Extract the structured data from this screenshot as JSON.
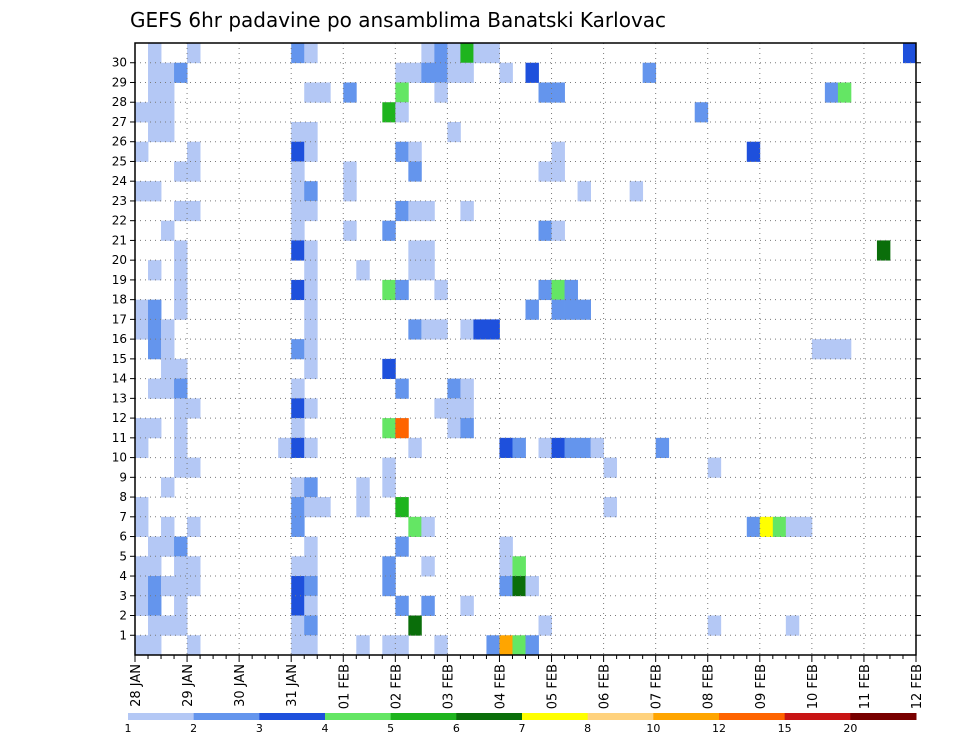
{
  "chart_data": {
    "type": "heatmap",
    "title": "GEFS 6hr padavine po ansamblima Banatski Karlovac",
    "x_tick_labels": [
      "28 JAN",
      "29 JAN",
      "30 JAN",
      "31 JAN",
      "01 FEB",
      "02 FEB",
      "03 FEB",
      "04 FEB",
      "05 FEB",
      "06 FEB",
      "07 FEB",
      "08 FEB",
      "09 FEB",
      "10 FEB",
      "11 FEB",
      "12 FEB"
    ],
    "y_tick_labels": [
      "1",
      "2",
      "3",
      "4",
      "5",
      "6",
      "7",
      "8",
      "9",
      "10",
      "11",
      "12",
      "13",
      "14",
      "15",
      "16",
      "17",
      "18",
      "19",
      "20",
      "21",
      "22",
      "23",
      "24",
      "25",
      "26",
      "27",
      "28",
      "29",
      "30"
    ],
    "time_step_hours": 6,
    "grid": "dotted",
    "colorbar": {
      "placement": "bottom",
      "labels": [
        "1",
        "2",
        "3",
        "4",
        "5",
        "6",
        "7",
        "8",
        "10",
        "12",
        "15",
        "20"
      ],
      "colors": [
        "#b4c8f5",
        "#6495ed",
        "#1e50dc",
        "#64e664",
        "#1eb41e",
        "#0a6e0a",
        "#ffff00",
        "#ffd27d",
        "#ffa500",
        "#ff6400",
        "#c81414",
        "#780000"
      ]
    },
    "members": [
      {
        "member": 30,
        "cells": [
          [
            1,
            1
          ],
          [
            4,
            1
          ],
          [
            12,
            2
          ],
          [
            13,
            1
          ],
          [
            22,
            1
          ],
          [
            23,
            2
          ],
          [
            24,
            1
          ],
          [
            25,
            5
          ],
          [
            26,
            1
          ],
          [
            27,
            1
          ],
          [
            59,
            3
          ]
        ]
      },
      {
        "member": 29,
        "cells": [
          [
            1,
            1
          ],
          [
            2,
            1
          ],
          [
            3,
            2
          ],
          [
            20,
            1
          ],
          [
            21,
            1
          ],
          [
            22,
            2
          ],
          [
            23,
            2
          ],
          [
            24,
            1
          ],
          [
            25,
            1
          ],
          [
            28,
            1
          ],
          [
            30,
            3
          ],
          [
            39,
            2
          ]
        ]
      },
      {
        "member": 28,
        "cells": [
          [
            1,
            1
          ],
          [
            2,
            1
          ],
          [
            13,
            1
          ],
          [
            14,
            1
          ],
          [
            16,
            2
          ],
          [
            20,
            4
          ],
          [
            23,
            1
          ],
          [
            31,
            2
          ],
          [
            32,
            2
          ],
          [
            53,
            2
          ],
          [
            54,
            4
          ]
        ]
      },
      {
        "member": 27,
        "cells": [
          [
            0,
            1
          ],
          [
            1,
            1
          ],
          [
            2,
            1
          ],
          [
            19,
            5
          ],
          [
            20,
            1
          ],
          [
            43,
            2
          ]
        ]
      },
      {
        "member": 26,
        "cells": [
          [
            1,
            1
          ],
          [
            2,
            1
          ],
          [
            12,
            1
          ],
          [
            13,
            1
          ],
          [
            24,
            1
          ]
        ]
      },
      {
        "member": 25,
        "cells": [
          [
            0,
            1
          ],
          [
            4,
            1
          ],
          [
            12,
            3
          ],
          [
            13,
            1
          ],
          [
            20,
            2
          ],
          [
            21,
            1
          ],
          [
            32,
            1
          ],
          [
            47,
            3
          ]
        ]
      },
      {
        "member": 24,
        "cells": [
          [
            3,
            1
          ],
          [
            4,
            1
          ],
          [
            12,
            1
          ],
          [
            16,
            1
          ],
          [
            21,
            2
          ],
          [
            31,
            1
          ],
          [
            32,
            1
          ]
        ]
      },
      {
        "member": 23,
        "cells": [
          [
            0,
            1
          ],
          [
            1,
            1
          ],
          [
            12,
            1
          ],
          [
            13,
            2
          ],
          [
            16,
            1
          ],
          [
            34,
            1
          ],
          [
            38,
            1
          ]
        ]
      },
      {
        "member": 22,
        "cells": [
          [
            3,
            1
          ],
          [
            4,
            1
          ],
          [
            12,
            1
          ],
          [
            13,
            1
          ],
          [
            20,
            2
          ],
          [
            21,
            1
          ],
          [
            22,
            1
          ],
          [
            25,
            1
          ]
        ]
      },
      {
        "member": 21,
        "cells": [
          [
            2,
            1
          ],
          [
            12,
            1
          ],
          [
            16,
            1
          ],
          [
            19,
            2
          ],
          [
            31,
            2
          ],
          [
            32,
            1
          ]
        ]
      },
      {
        "member": 20,
        "cells": [
          [
            3,
            1
          ],
          [
            12,
            3
          ],
          [
            13,
            1
          ],
          [
            21,
            1
          ],
          [
            22,
            1
          ],
          [
            57,
            6
          ]
        ]
      },
      {
        "member": 19,
        "cells": [
          [
            1,
            1
          ],
          [
            3,
            1
          ],
          [
            13,
            1
          ],
          [
            17,
            1
          ],
          [
            21,
            1
          ],
          [
            22,
            1
          ]
        ]
      },
      {
        "member": 18,
        "cells": [
          [
            3,
            1
          ],
          [
            12,
            3
          ],
          [
            13,
            1
          ],
          [
            19,
            4
          ],
          [
            20,
            2
          ],
          [
            23,
            1
          ],
          [
            31,
            2
          ],
          [
            32,
            4
          ],
          [
            33,
            2
          ]
        ]
      },
      {
        "member": 17,
        "cells": [
          [
            0,
            1
          ],
          [
            1,
            2
          ],
          [
            3,
            1
          ],
          [
            13,
            1
          ],
          [
            30,
            2
          ],
          [
            32,
            2
          ],
          [
            33,
            2
          ],
          [
            34,
            2
          ]
        ]
      },
      {
        "member": 16,
        "cells": [
          [
            0,
            1
          ],
          [
            1,
            2
          ],
          [
            2,
            1
          ],
          [
            13,
            1
          ],
          [
            21,
            2
          ],
          [
            22,
            1
          ],
          [
            23,
            1
          ],
          [
            25,
            1
          ],
          [
            26,
            3
          ],
          [
            27,
            3
          ]
        ]
      },
      {
        "member": 15,
        "cells": [
          [
            1,
            2
          ],
          [
            2,
            1
          ],
          [
            12,
            2
          ],
          [
            13,
            1
          ],
          [
            52,
            1
          ],
          [
            53,
            1
          ],
          [
            54,
            1
          ]
        ]
      },
      {
        "member": 14,
        "cells": [
          [
            2,
            1
          ],
          [
            3,
            1
          ],
          [
            13,
            1
          ],
          [
            19,
            3
          ]
        ]
      },
      {
        "member": 13,
        "cells": [
          [
            1,
            1
          ],
          [
            2,
            1
          ],
          [
            3,
            2
          ],
          [
            12,
            1
          ],
          [
            20,
            2
          ],
          [
            24,
            2
          ],
          [
            25,
            1
          ]
        ]
      },
      {
        "member": 12,
        "cells": [
          [
            3,
            1
          ],
          [
            4,
            1
          ],
          [
            12,
            3
          ],
          [
            13,
            1
          ],
          [
            23,
            1
          ],
          [
            24,
            1
          ],
          [
            25,
            1
          ]
        ]
      },
      {
        "member": 11,
        "cells": [
          [
            0,
            1
          ],
          [
            1,
            1
          ],
          [
            3,
            1
          ],
          [
            12,
            1
          ],
          [
            19,
            4
          ],
          [
            20,
            10
          ],
          [
            24,
            1
          ],
          [
            25,
            2
          ]
        ]
      },
      {
        "member": 10,
        "cells": [
          [
            0,
            1
          ],
          [
            3,
            1
          ],
          [
            11,
            1
          ],
          [
            12,
            3
          ],
          [
            13,
            1
          ],
          [
            21,
            1
          ],
          [
            28,
            3
          ],
          [
            29,
            2
          ],
          [
            31,
            1
          ],
          [
            32,
            3
          ],
          [
            33,
            2
          ],
          [
            34,
            2
          ],
          [
            35,
            1
          ],
          [
            40,
            2
          ]
        ]
      },
      {
        "member": 9,
        "cells": [
          [
            3,
            1
          ],
          [
            4,
            1
          ],
          [
            19,
            1
          ],
          [
            36,
            1
          ],
          [
            44,
            1
          ]
        ]
      },
      {
        "member": 8,
        "cells": [
          [
            2,
            1
          ],
          [
            12,
            1
          ],
          [
            13,
            2
          ],
          [
            17,
            1
          ],
          [
            19,
            1
          ]
        ]
      },
      {
        "member": 7,
        "cells": [
          [
            0,
            1
          ],
          [
            12,
            2
          ],
          [
            13,
            1
          ],
          [
            14,
            1
          ],
          [
            17,
            1
          ],
          [
            20,
            5
          ],
          [
            36,
            1
          ]
        ]
      },
      {
        "member": 6,
        "cells": [
          [
            0,
            1
          ],
          [
            2,
            1
          ],
          [
            4,
            1
          ],
          [
            12,
            2
          ],
          [
            21,
            4
          ],
          [
            22,
            1
          ],
          [
            47,
            2
          ],
          [
            48,
            7
          ],
          [
            49,
            4
          ],
          [
            50,
            1
          ],
          [
            51,
            1
          ]
        ]
      },
      {
        "member": 5,
        "cells": [
          [
            1,
            1
          ],
          [
            2,
            1
          ],
          [
            3,
            2
          ],
          [
            13,
            1
          ],
          [
            20,
            2
          ],
          [
            28,
            1
          ]
        ]
      },
      {
        "member": 4,
        "cells": [
          [
            0,
            1
          ],
          [
            1,
            1
          ],
          [
            3,
            1
          ],
          [
            4,
            1
          ],
          [
            12,
            1
          ],
          [
            13,
            1
          ],
          [
            19,
            2
          ],
          [
            22,
            1
          ],
          [
            28,
            1
          ],
          [
            29,
            4
          ]
        ]
      },
      {
        "member": 3,
        "cells": [
          [
            0,
            1
          ],
          [
            1,
            2
          ],
          [
            2,
            1
          ],
          [
            3,
            1
          ],
          [
            4,
            1
          ],
          [
            12,
            3
          ],
          [
            13,
            2
          ],
          [
            19,
            2
          ],
          [
            28,
            2
          ],
          [
            29,
            6
          ],
          [
            30,
            1
          ]
        ]
      },
      {
        "member": 2,
        "cells": [
          [
            0,
            1
          ],
          [
            1,
            2
          ],
          [
            3,
            1
          ],
          [
            12,
            3
          ],
          [
            13,
            1
          ],
          [
            20,
            2
          ],
          [
            22,
            2
          ],
          [
            25,
            1
          ]
        ]
      },
      {
        "member": 1,
        "cells": [
          [
            1,
            1
          ],
          [
            2,
            1
          ],
          [
            3,
            1
          ],
          [
            12,
            1
          ],
          [
            13,
            2
          ],
          [
            21,
            6
          ],
          [
            31,
            1
          ],
          [
            44,
            1
          ],
          [
            50,
            1
          ]
        ]
      },
      {
        "member": 0,
        "cells": [
          [
            0,
            1
          ],
          [
            1,
            1
          ],
          [
            4,
            1
          ],
          [
            12,
            1
          ],
          [
            13,
            1
          ],
          [
            17,
            1
          ],
          [
            19,
            1
          ],
          [
            20,
            1
          ],
          [
            23,
            1
          ],
          [
            27,
            2
          ],
          [
            28,
            9
          ],
          [
            29,
            4
          ],
          [
            30,
            2
          ]
        ]
      }
    ]
  }
}
